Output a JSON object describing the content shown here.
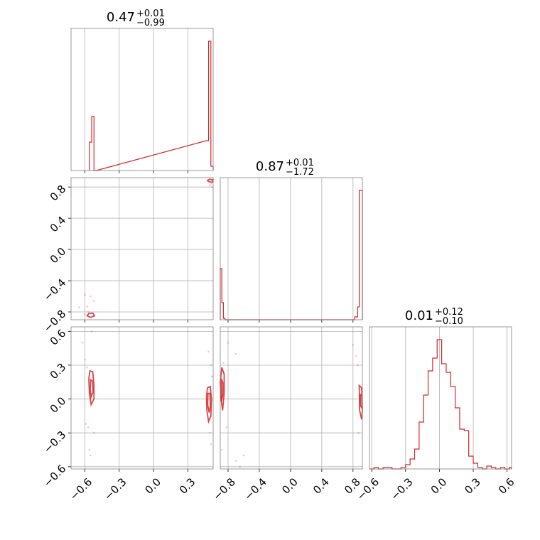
{
  "chart_data": {
    "type": "corner",
    "color": "#d62728",
    "parameters": [
      {
        "title_value": "0.47",
        "title_plus": "+0.01",
        "title_minus": "−0.99",
        "range": [
          -0.72,
          0.52
        ],
        "ticks": [
          -0.6,
          -0.3,
          0.0,
          0.3
        ],
        "tick_labels": [
          "−0.6",
          "−0.3",
          "0.0",
          "0.3"
        ]
      },
      {
        "title_value": "0.87",
        "title_plus": "+0.01",
        "title_minus": "−1.72",
        "range": [
          -0.9,
          0.92
        ],
        "ticks": [
          -0.8,
          -0.4,
          0.0,
          0.4,
          0.8
        ],
        "tick_labels": [
          "−0.8",
          "−0.4",
          "0.0",
          "0.4",
          "0.8"
        ]
      },
      {
        "title_value": "0.01",
        "title_plus": "+0.12",
        "title_minus": "−0.10",
        "range": [
          -0.62,
          0.64
        ],
        "ticks": [
          -0.6,
          -0.3,
          0.0,
          0.3,
          0.6
        ],
        "tick_labels": [
          "−0.6",
          "−0.3",
          "0.0",
          "0.3",
          "0.6"
        ]
      }
    ],
    "histograms": [
      {
        "bins": [
          [
            -0.56,
            -0.54,
            0.2
          ],
          [
            -0.54,
            -0.52,
            0.38
          ],
          [
            -0.52,
            -0.5,
            0.0
          ],
          [
            0.46,
            0.48,
            0.21
          ],
          [
            0.48,
            0.5,
            0.91
          ],
          [
            0.5,
            0.52,
            0.03
          ]
        ]
      },
      {
        "bins": [
          [
            -0.9,
            -0.88,
            0.36
          ],
          [
            -0.88,
            -0.86,
            0.12
          ],
          [
            -0.86,
            -0.84,
            0.01
          ],
          [
            -0.84,
            0.82,
            0.0
          ],
          [
            0.82,
            0.86,
            0.02
          ],
          [
            0.86,
            0.88,
            0.09
          ],
          [
            0.88,
            0.92,
            0.91
          ]
        ]
      },
      {
        "bins": [
          [
            -0.62,
            -0.58,
            0.0
          ],
          [
            -0.58,
            -0.54,
            0.01
          ],
          [
            -0.54,
            -0.5,
            0.0
          ],
          [
            -0.5,
            -0.46,
            0.01
          ],
          [
            -0.46,
            -0.42,
            0.01
          ],
          [
            -0.42,
            -0.38,
            0.0
          ],
          [
            -0.38,
            -0.34,
            0.0
          ],
          [
            -0.34,
            -0.3,
            0.01
          ],
          [
            -0.3,
            -0.26,
            0.03
          ],
          [
            -0.26,
            -0.22,
            0.07
          ],
          [
            -0.22,
            -0.18,
            0.14
          ],
          [
            -0.18,
            -0.14,
            0.33
          ],
          [
            -0.14,
            -0.1,
            0.52
          ],
          [
            -0.1,
            -0.06,
            0.69
          ],
          [
            -0.06,
            -0.02,
            0.78
          ],
          [
            -0.02,
            0.02,
            0.91
          ],
          [
            0.02,
            0.06,
            0.74
          ],
          [
            0.06,
            0.1,
            0.68
          ],
          [
            0.1,
            0.14,
            0.58
          ],
          [
            0.14,
            0.18,
            0.43
          ],
          [
            0.18,
            0.22,
            0.28
          ],
          [
            0.22,
            0.26,
            0.27
          ],
          [
            0.26,
            0.3,
            0.09
          ],
          [
            0.3,
            0.34,
            0.04
          ],
          [
            0.34,
            0.38,
            0.01
          ],
          [
            0.38,
            0.42,
            0.0
          ],
          [
            0.42,
            0.46,
            0.02
          ],
          [
            0.46,
            0.5,
            0.01
          ],
          [
            0.5,
            0.54,
            0.0
          ],
          [
            0.54,
            0.58,
            0.01
          ],
          [
            0.58,
            0.62,
            0.0
          ],
          [
            0.62,
            0.64,
            0.01
          ]
        ]
      }
    ],
    "pairs": [
      {
        "x_param": 0,
        "y_param": 1,
        "contours": [
          [
            [
              -0.565,
              -0.82
            ],
            [
              -0.53,
              -0.815
            ],
            [
              -0.515,
              -0.85
            ],
            [
              -0.55,
              -0.87
            ],
            [
              -0.58,
              -0.85
            ]
          ],
          [
            [
              0.48,
              0.87
            ],
            [
              0.51,
              0.86
            ],
            [
              0.52,
              0.89
            ],
            [
              0.49,
              0.9
            ],
            [
              0.47,
              0.885
            ]
          ]
        ],
        "scatter": [
          [
            -0.6,
            -0.58
          ],
          [
            -0.65,
            -0.74
          ],
          [
            -0.58,
            -0.73
          ],
          [
            -0.57,
            -0.8
          ],
          [
            -0.52,
            -0.66
          ],
          [
            -0.55,
            -0.6
          ],
          [
            0.5,
            0.84
          ],
          [
            0.51,
            0.8
          ],
          [
            0.49,
            0.82
          ],
          [
            -0.6,
            -0.83
          ]
        ]
      },
      {
        "x_param": 0,
        "y_param": 2,
        "contours": [
          [
            [
              -0.555,
              0.25
            ],
            [
              -0.53,
              0.24
            ],
            [
              -0.52,
              0.12
            ],
            [
              -0.52,
              0.0
            ],
            [
              -0.545,
              -0.05
            ],
            [
              -0.56,
              0.05
            ],
            [
              -0.565,
              0.18
            ]
          ],
          [
            [
              -0.548,
              0.17
            ],
            [
              -0.532,
              0.16
            ],
            [
              -0.528,
              0.06
            ],
            [
              -0.545,
              0.02
            ],
            [
              -0.553,
              0.09
            ]
          ],
          [
            [
              0.47,
              0.1
            ],
            [
              0.495,
              0.11
            ],
            [
              0.505,
              0.0
            ],
            [
              0.5,
              -0.15
            ],
            [
              0.48,
              -0.2
            ],
            [
              0.465,
              -0.1
            ],
            [
              0.462,
              0.02
            ]
          ],
          [
            [
              0.475,
              0.05
            ],
            [
              0.492,
              0.05
            ],
            [
              0.496,
              -0.06
            ],
            [
              0.485,
              -0.12
            ],
            [
              0.472,
              -0.05
            ]
          ]
        ],
        "scatter": [
          [
            -0.62,
            0.5
          ],
          [
            -0.6,
            0.35
          ],
          [
            -0.59,
            -0.22
          ],
          [
            -0.55,
            -0.5
          ],
          [
            -0.56,
            -0.45
          ],
          [
            -0.58,
            0.28
          ],
          [
            -0.54,
            0.6
          ],
          [
            -0.52,
            -0.3
          ],
          [
            0.48,
            0.42
          ],
          [
            0.5,
            0.3
          ],
          [
            0.49,
            -0.3
          ],
          [
            0.5,
            -0.4
          ],
          [
            0.51,
            0.2
          ],
          [
            -0.57,
            -0.25
          ]
        ]
      },
      {
        "x_param": 1,
        "y_param": 2,
        "contours": [
          [
            [
              -0.88,
              0.28
            ],
            [
              -0.85,
              0.22
            ],
            [
              -0.85,
              0.05
            ],
            [
              -0.87,
              -0.1
            ],
            [
              -0.89,
              0.0
            ],
            [
              -0.9,
              0.15
            ]
          ],
          [
            [
              -0.885,
              0.18
            ],
            [
              -0.865,
              0.14
            ],
            [
              -0.866,
              0.04
            ],
            [
              -0.885,
              -0.02
            ]
          ],
          [
            [
              0.88,
              0.12
            ],
            [
              0.91,
              0.1
            ],
            [
              0.92,
              -0.1
            ],
            [
              0.91,
              -0.18
            ],
            [
              0.885,
              -0.1
            ]
          ],
          [
            [
              0.895,
              0.04
            ],
            [
              0.915,
              0.03
            ],
            [
              0.915,
              -0.08
            ],
            [
              0.895,
              -0.06
            ]
          ]
        ],
        "scatter": [
          [
            -0.8,
            0.5
          ],
          [
            -0.7,
            0.4
          ],
          [
            -0.88,
            -0.45
          ],
          [
            -0.6,
            -0.5
          ],
          [
            -0.65,
            -0.6
          ],
          [
            -0.86,
            0.32
          ],
          [
            0.8,
            0.48
          ],
          [
            0.84,
            0.38
          ],
          [
            0.86,
            0.3
          ],
          [
            0.87,
            -0.3
          ],
          [
            -0.7,
            -0.55
          ],
          [
            -0.82,
            -0.25
          ]
        ]
      }
    ]
  }
}
